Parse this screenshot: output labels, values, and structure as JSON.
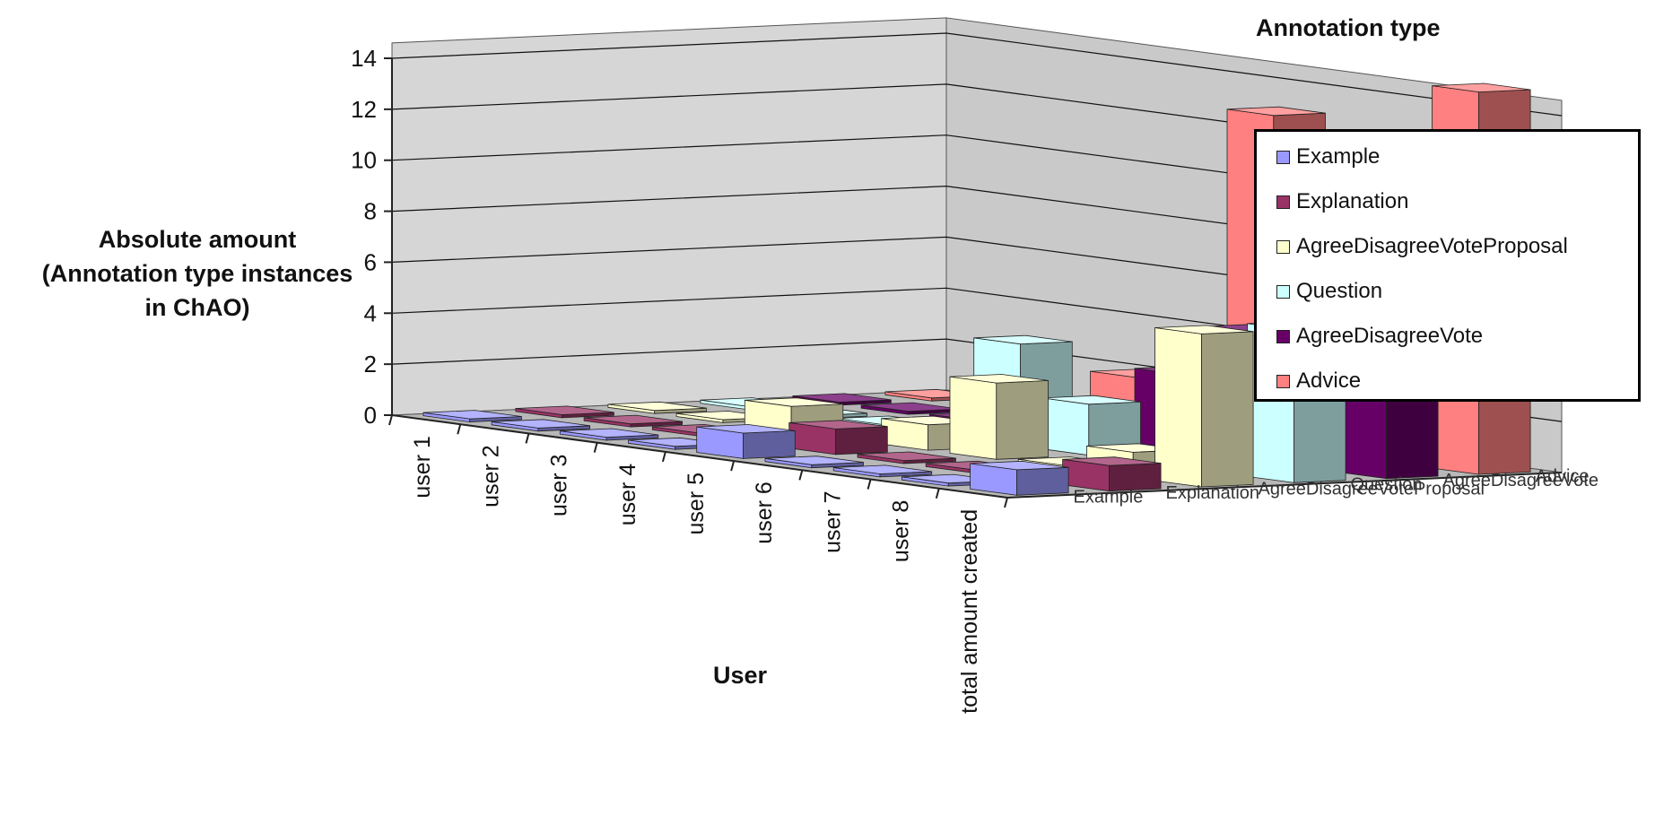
{
  "chart_data": {
    "type": "bar",
    "subtype": "3d-column",
    "title": "",
    "ylabel_lines": [
      "Absolute amount",
      "(Annotation type instances",
      "in ChAO)"
    ],
    "xlabel": "User",
    "ylim": [
      0,
      14
    ],
    "yticks": [
      "0",
      "2",
      "4",
      "6",
      "8",
      "10",
      "12",
      "14"
    ],
    "grid": true,
    "legend_title": "Annotation type",
    "legend_position": "right",
    "categories": [
      "user 1",
      "user 2",
      "user 3",
      "user 4",
      "user 5",
      "user 6",
      "user 7",
      "user 8",
      "total amount created"
    ],
    "series": [
      {
        "name": "Example",
        "color": "#9999FF",
        "values": [
          0,
          0,
          0,
          0,
          1,
          0,
          0,
          0,
          1
        ]
      },
      {
        "name": "Explanation",
        "color": "#993366",
        "values": [
          0,
          0,
          0,
          0,
          1,
          0,
          0,
          0,
          1
        ]
      },
      {
        "name": "AgreeDisagreeVoteProposal",
        "color": "#FFFFCC",
        "values": [
          0,
          0,
          1,
          0,
          1,
          3,
          0,
          1,
          6
        ]
      },
      {
        "name": "Question",
        "color": "#CCFFFF",
        "values": [
          0,
          0,
          0,
          0,
          4,
          2,
          0,
          0,
          6
        ]
      },
      {
        "name": "AgreeDisagreeVote",
        "color": "#660066",
        "values": [
          0,
          0,
          0,
          0,
          0,
          3,
          5,
          3,
          12
        ]
      },
      {
        "name": "Advice",
        "color": "#FF8080",
        "values": [
          0,
          0,
          0,
          2,
          0,
          13,
          0,
          0,
          15
        ]
      }
    ]
  }
}
